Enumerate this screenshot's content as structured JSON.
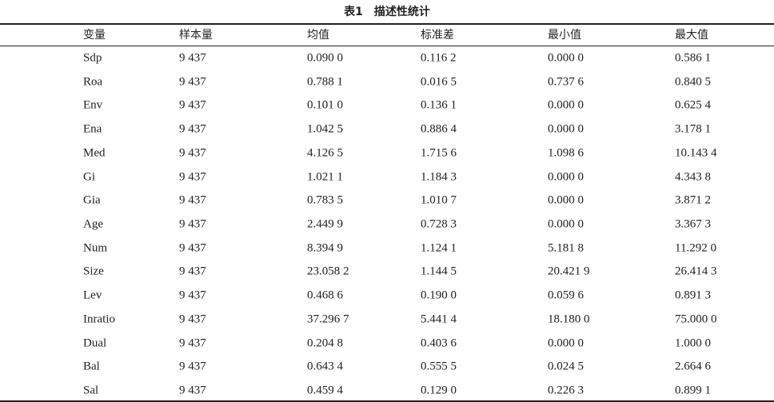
{
  "title": "表1　描述性统计",
  "table": {
    "header": [
      "变量",
      "样本量",
      "均值",
      "标准差",
      "最小值",
      "最大值"
    ],
    "rows": [
      [
        "Sdp",
        "9 437",
        "0.090 0",
        "0.116 2",
        "0.000 0",
        "0.586 1"
      ],
      [
        "Roa",
        "9 437",
        "0.788 1",
        "0.016 5",
        "0.737 6",
        "0.840 5"
      ],
      [
        "Env",
        "9 437",
        "0.101 0",
        "0.136 1",
        "0.000 0",
        "0.625 4"
      ],
      [
        "Ena",
        "9 437",
        "1.042 5",
        "0.886 4",
        "0.000 0",
        "3.178 1"
      ],
      [
        "Med",
        "9 437",
        "4.126 5",
        "1.715 6",
        "1.098 6",
        "10.143 4"
      ],
      [
        "Gi",
        "9 437",
        "1.021 1",
        "1.184 3",
        "0.000 0",
        "4.343 8"
      ],
      [
        "Gia",
        "9 437",
        "0.783 5",
        "1.010 7",
        "0.000 0",
        "3.871 2"
      ],
      [
        "Age",
        "9 437",
        "2.449 9",
        "0.728 3",
        "0.000 0",
        "3.367 3"
      ],
      [
        "Num",
        "9 437",
        "8.394 9",
        "1.124 1",
        "5.181 8",
        "11.292 0"
      ],
      [
        "Size",
        "9 437",
        "23.058 2",
        "1.144 5",
        "20.421 9",
        "26.414 3"
      ],
      [
        "Lev",
        "9 437",
        "0.468 6",
        "0.190 0",
        "0.059 6",
        "0.891 3"
      ],
      [
        "Inratio",
        "9 437",
        "37.296 7",
        "5.441 4",
        "18.180 0",
        "75.000 0"
      ],
      [
        "Dual",
        "9 437",
        "0.204 8",
        "0.403 6",
        "0.000 0",
        "1.000 0"
      ],
      [
        "Bal",
        "9 437",
        "0.643 4",
        "0.555 5",
        "0.024 5",
        "2.664 6"
      ],
      [
        "Sal",
        "9 437",
        "0.459 4",
        "0.129 0",
        "0.226 3",
        "0.899 1"
      ]
    ]
  }
}
